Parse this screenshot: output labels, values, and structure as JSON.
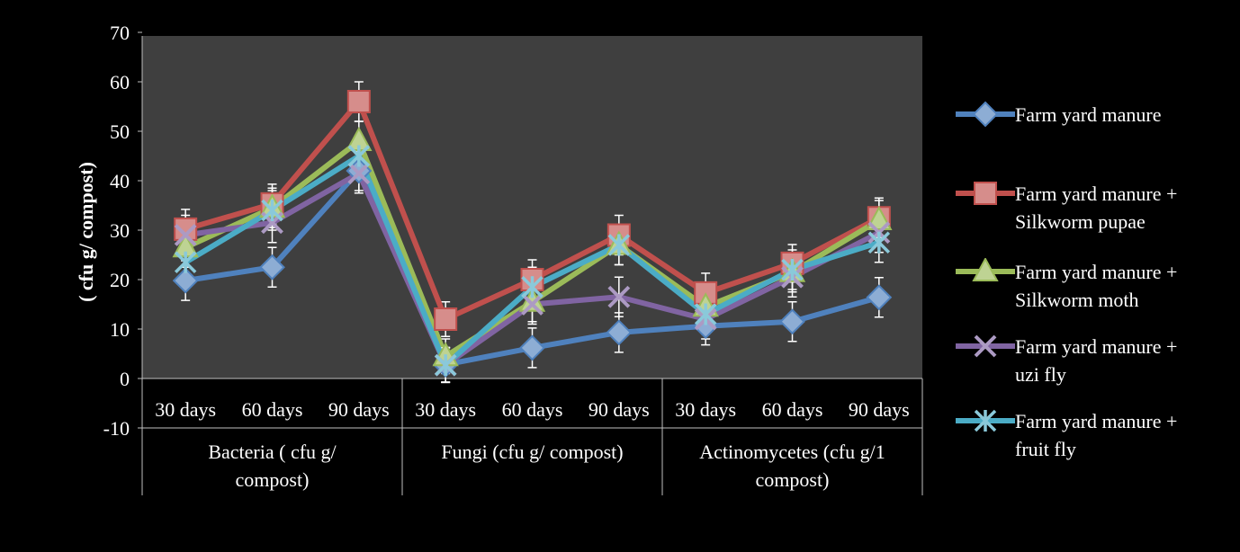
{
  "chart_data": {
    "type": "line",
    "ylabel": "( cfu g/ compost)",
    "xlabel": "",
    "ylim": [
      -10,
      70
    ],
    "y_ticks": [
      "70",
      "60",
      "50",
      "40",
      "30",
      "20",
      "10",
      "0",
      "-10"
    ],
    "categories": [
      "30 days",
      "60 days",
      "90 days",
      "30 days",
      "60 days",
      "90 days",
      "30 days",
      "60 days",
      "90 days"
    ],
    "groups": [
      {
        "label": "Bacteria ( cfu g/\ncompost)"
      },
      {
        "label": "Fungi (cfu g/ compost)"
      },
      {
        "label": "Actinomycetes (cfu g/1\ncompost)"
      }
    ],
    "legend_position": "right",
    "error_bars": true,
    "series": [
      {
        "name": "Farm yard manure",
        "color": "#4f81bd",
        "marker": "diamond",
        "values": [
          19.8,
          22.5,
          42.0,
          2.8,
          6.2,
          9.3,
          10.6,
          11.5,
          16.4
        ],
        "errors": [
          4.0,
          4.0,
          4.0,
          3.5,
          4.0,
          4.0,
          3.8,
          4.0,
          4.0
        ]
      },
      {
        "name": "Farm yard manure +\nSilkworm pupae",
        "color": "#c0504d",
        "marker": "square",
        "values": [
          30.2,
          35.3,
          56.0,
          12.0,
          20.0,
          29.0,
          17.3,
          23.3,
          32.5
        ],
        "errors": [
          4.0,
          4.0,
          4.0,
          3.5,
          4.0,
          4.0,
          4.0,
          3.8,
          4.0
        ]
      },
      {
        "name": "Farm yard manure +\nSilkworm moth",
        "color": "#9bbb59",
        "marker": "triangle",
        "values": [
          26.5,
          34.5,
          48.0,
          4.5,
          15.5,
          27.0,
          14.5,
          21.5,
          32.0
        ],
        "errors": [
          4.0,
          4.0,
          4.0,
          3.5,
          4.0,
          4.0,
          4.0,
          4.0,
          4.0
        ]
      },
      {
        "name": "Farm yard manure +\nuzi fly",
        "color": "#8064a2",
        "marker": "x",
        "values": [
          29.0,
          31.5,
          41.5,
          2.7,
          15.0,
          16.5,
          12.0,
          20.5,
          29.5
        ],
        "errors": [
          4.0,
          4.0,
          4.0,
          3.5,
          4.0,
          4.0,
          4.0,
          4.0,
          4.0
        ]
      },
      {
        "name": "Farm yard manure +\nfruit fly",
        "color": "#4bacc6",
        "marker": "star",
        "values": [
          23.5,
          34.0,
          45.0,
          2.7,
          18.5,
          27.0,
          13.0,
          22.0,
          27.5
        ],
        "errors": [
          4.0,
          4.0,
          4.0,
          3.5,
          4.0,
          4.0,
          4.0,
          4.0,
          4.0
        ]
      }
    ]
  }
}
